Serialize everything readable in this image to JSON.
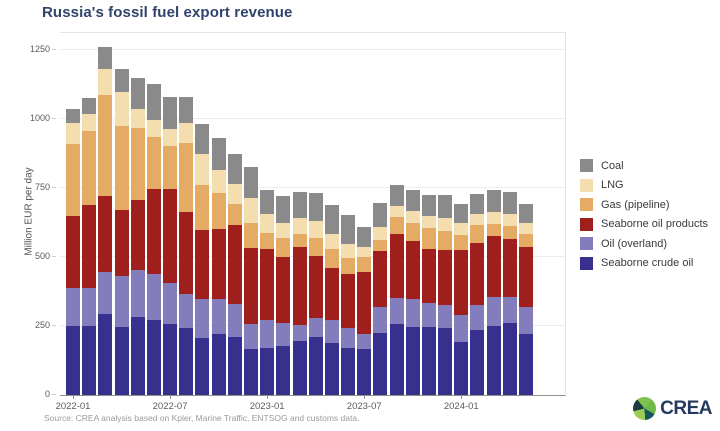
{
  "title": "Russia's fossil fuel export revenue",
  "source": "Source: CREA analysis based on Kpler, Marine Traffic, ENTSOG and customs data.",
  "logo_text": "CREA",
  "colors": {
    "title": "#31436b",
    "coal": "#8a8a8a",
    "lng": "#f4ddae",
    "gas_pipeline": "#e5aa63",
    "seaborne_oil_products": "#9e1f1c",
    "oil_overland": "#837dbd",
    "seaborne_crude_oil": "#37308e",
    "gridline": "#ececec",
    "axis_line": "#8f8f8f"
  },
  "chart_data": {
    "type": "bar",
    "stacked": true,
    "title": "Russia's fossil fuel export revenue",
    "xlabel": "",
    "ylabel": "Million EUR per day",
    "ylim": [
      0,
      1312
    ],
    "grid": true,
    "legend_position": "right",
    "yticks": [
      0,
      250,
      500,
      750,
      1000,
      1250
    ],
    "xticks": [
      "2022-01",
      "2022-07",
      "2023-01",
      "2023-07",
      "2024-01"
    ],
    "x": [
      "2022-01",
      "2022-02",
      "2022-03",
      "2022-04",
      "2022-05",
      "2022-06",
      "2022-07",
      "2022-08",
      "2022-09",
      "2022-10",
      "2022-11",
      "2022-12",
      "2023-01",
      "2023-02",
      "2023-03",
      "2023-04",
      "2023-05",
      "2023-06",
      "2023-07",
      "2023-08",
      "2023-09",
      "2023-10",
      "2023-11",
      "2023-12",
      "2024-01",
      "2024-02",
      "2024-03",
      "2024-04",
      "2024-05"
    ],
    "series": [
      {
        "name": "Seaborne crude oil",
        "color": "#37308e",
        "values": [
          250,
          250,
          295,
          246,
          283,
          271,
          256,
          242,
          208,
          220,
          210,
          166,
          171,
          177,
          196,
          210,
          190,
          171,
          166,
          226,
          258,
          246,
          246,
          242,
          193,
          234,
          250,
          262,
          222
        ]
      },
      {
        "name": "Oil (overland)",
        "color": "#837dbd",
        "values": [
          139,
          139,
          152,
          185,
          169,
          166,
          151,
          123,
          139,
          127,
          119,
          92,
          100,
          85,
          58,
          70,
          81,
          71,
          56,
          94,
          92,
          101,
          88,
          84,
          97,
          92,
          105,
          93,
          97
        ]
      },
      {
        "name": "Seaborne oil products",
        "color": "#9e1f1c",
        "values": [
          259,
          299,
          274,
          238,
          253,
          311,
          338,
          299,
          250,
          253,
          287,
          276,
          257,
          238,
          282,
          224,
          190,
          195,
          225,
          203,
          234,
          211,
          194,
          198,
          234,
          226,
          221,
          209,
          217
        ]
      },
      {
        "name": "Gas (pipeline)",
        "color": "#e5aa63",
        "values": [
          260,
          268,
          366,
          306,
          261,
          187,
          158,
          250,
          164,
          133,
          75,
          90,
          60,
          70,
          48,
          66,
          67,
          61,
          53,
          39,
          61,
          66,
          78,
          70,
          56,
          64,
          45,
          48,
          48
        ]
      },
      {
        "name": "LNG",
        "color": "#f4ddae",
        "values": [
          76,
          63,
          93,
          124,
          69,
          60,
          60,
          73,
          111,
          81,
          75,
          89,
          67,
          54,
          56,
          60,
          54,
          50,
          36,
          46,
          40,
          43,
          43,
          46,
          44,
          41,
          43,
          45,
          40
        ]
      },
      {
        "name": "Coal",
        "color": "#8a8a8a",
        "values": [
          51,
          56,
          80,
          81,
          112,
          133,
          115,
          93,
          109,
          118,
          106,
          113,
          87,
          97,
          97,
          103,
          106,
          104,
          73,
          87,
          76,
          75,
          76,
          85,
          69,
          70,
          78,
          80,
          69
        ]
      }
    ]
  },
  "legend": {
    "items": [
      {
        "label": "Coal",
        "color": "#8a8a8a"
      },
      {
        "label": "LNG",
        "color": "#f4ddae"
      },
      {
        "label": "Gas (pipeline)",
        "color": "#e5aa63"
      },
      {
        "label": "Seaborne oil products",
        "color": "#9e1f1c"
      },
      {
        "label": "Oil (overland)",
        "color": "#837dbd"
      },
      {
        "label": "Seaborne crude oil",
        "color": "#37308e"
      }
    ]
  }
}
